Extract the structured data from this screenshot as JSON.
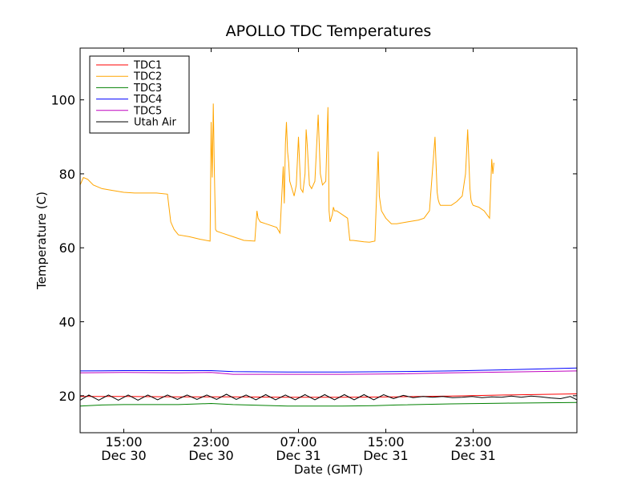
{
  "chart_data": {
    "type": "line",
    "title": "APOLLO TDC Temperatures",
    "xlabel": "Date (GMT)",
    "ylabel": "Temperature (C)",
    "xlim": [
      11,
      56.5
    ],
    "ylim": [
      10,
      114
    ],
    "yticks": [
      20,
      40,
      60,
      80,
      100
    ],
    "xticks": [
      {
        "value": 15,
        "time": "15:00",
        "date": "Dec 30"
      },
      {
        "value": 23,
        "time": "23:00",
        "date": "Dec 30"
      },
      {
        "value": 31,
        "time": "07:00",
        "date": "Dec 31"
      },
      {
        "value": 39,
        "time": "15:00",
        "date": "Dec 31"
      },
      {
        "value": 47,
        "time": "23:00",
        "date": "Dec 31"
      }
    ],
    "legend_position": "top-left",
    "series": [
      {
        "name": "TDC1",
        "color": "#ff0000",
        "x": [
          11,
          15,
          20,
          25,
          30,
          35,
          40,
          45,
          50,
          56.5
        ],
        "y": [
          19.8,
          19.8,
          19.7,
          19.7,
          19.6,
          19.6,
          19.7,
          19.9,
          20.2,
          20.5
        ]
      },
      {
        "name": "TDC2",
        "color": "#ffa500",
        "x": [
          11,
          11.3,
          11.7,
          12.2,
          13,
          14,
          15,
          16,
          17,
          18,
          19,
          19.3,
          19.6,
          20,
          21,
          22,
          22.9,
          23.0,
          23.1,
          23.2,
          23.3,
          23.4,
          23.5,
          24,
          25,
          26,
          27,
          27.2,
          27.3,
          27.5,
          28,
          29,
          29.3,
          29.6,
          29.7,
          29.8,
          29.9,
          30.0,
          30.1,
          30.2,
          30.4,
          30.6,
          30.8,
          31.0,
          31.2,
          31.4,
          31.6,
          31.7,
          31.8,
          32.0,
          32.2,
          32.5,
          32.8,
          33.0,
          33.2,
          33.5,
          33.7,
          33.8,
          33.9,
          34.1,
          34.2,
          34.3,
          34.5,
          35,
          35.5,
          35.7,
          36,
          36.5,
          37,
          37.5,
          38,
          38.3,
          38.4,
          38.5,
          38.6,
          39,
          39.5,
          40,
          41,
          42,
          42.5,
          43,
          43.5,
          43.7,
          43.8,
          43.9,
          44,
          44.5,
          45,
          45.5,
          46,
          46.3,
          46.5,
          46.7,
          46.8,
          46.9,
          47,
          47.5,
          48,
          48.5,
          48.7,
          48.8,
          48.9
        ],
        "y": [
          77,
          79,
          78.5,
          77,
          76,
          75.5,
          75,
          74.8,
          74.8,
          74.8,
          74.5,
          67,
          65,
          63.5,
          63,
          62.3,
          61.8,
          94,
          79,
          99,
          80,
          65,
          64.5,
          64,
          63,
          62,
          61.8,
          70,
          68,
          67,
          66.5,
          65.5,
          64,
          82,
          72,
          88,
          94,
          86,
          83,
          78,
          76,
          74,
          77,
          90,
          76,
          75,
          80,
          92,
          88,
          77,
          76,
          78,
          96,
          80,
          77,
          78,
          98,
          70,
          67,
          69,
          71,
          70,
          70,
          69,
          68,
          62,
          62,
          61.8,
          61.6,
          61.5,
          61.8,
          86,
          74,
          72,
          70,
          68,
          66.5,
          66.5,
          67,
          67.5,
          68,
          70,
          90,
          75,
          73,
          72,
          71.5,
          71.5,
          71.5,
          72.5,
          74,
          80,
          92,
          76,
          73,
          72,
          71.5,
          71,
          70,
          68,
          84,
          80,
          83
        ]
      },
      {
        "name": "TDC3",
        "color": "#008000",
        "x": [
          11,
          13,
          15,
          20,
          23,
          25,
          30,
          35,
          38,
          40,
          45,
          50,
          56.5
        ],
        "y": [
          17.2,
          17.5,
          17.6,
          17.6,
          17.9,
          17.6,
          17.2,
          17.2,
          17.3,
          17.5,
          17.8,
          18,
          18.2
        ]
      },
      {
        "name": "TDC4",
        "color": "#0000ff",
        "x": [
          11,
          15,
          20,
          23,
          25,
          30,
          35,
          40,
          45,
          50,
          56.5
        ],
        "y": [
          26.7,
          26.8,
          26.8,
          26.8,
          26.5,
          26.4,
          26.4,
          26.5,
          26.7,
          27,
          27.5
        ]
      },
      {
        "name": "TDC5",
        "color": "#bf00bf",
        "x": [
          11,
          15,
          20,
          23,
          25,
          30,
          35,
          40,
          45,
          50,
          56.5
        ],
        "y": [
          26.2,
          26.3,
          26.2,
          26.3,
          25.8,
          25.8,
          25.8,
          25.9,
          26.2,
          26.4,
          26.7
        ]
      },
      {
        "name": "Utah Air",
        "color": "#000000",
        "x": [
          11,
          11.8,
          12.7,
          13.6,
          14.5,
          15.4,
          16.3,
          17.2,
          18.1,
          19,
          19.9,
          20.8,
          21.7,
          22.6,
          23.5,
          24.4,
          25.3,
          26.2,
          27.1,
          28,
          28.9,
          29.8,
          30.7,
          31.6,
          32.5,
          33.4,
          34.3,
          35.2,
          36.1,
          37,
          37.9,
          38.8,
          39.7,
          40.6,
          41.5,
          42.4,
          43.3,
          44.2,
          45.1,
          46,
          46.9,
          47.8,
          48.7,
          49.6,
          50.5,
          51.4,
          52.3,
          53.2,
          54.1,
          55,
          55.9,
          56.5
        ],
        "y": [
          18.8,
          20.2,
          18.8,
          20.2,
          18.8,
          20.2,
          18.8,
          20.2,
          18.9,
          20.2,
          19,
          20.2,
          19,
          20.2,
          19,
          20.4,
          19,
          20.2,
          18.9,
          20.3,
          18.9,
          20.2,
          18.9,
          20.3,
          18.9,
          20.3,
          18.9,
          20.3,
          18.9,
          20.3,
          18.9,
          20.3,
          19.2,
          20.1,
          19.5,
          19.8,
          19.6,
          19.8,
          19.5,
          19.6,
          19.8,
          19.5,
          19.7,
          19.6,
          19.9,
          19.6,
          19.9,
          19.7,
          19.4,
          19.2,
          19.8,
          18.9
        ]
      }
    ]
  }
}
